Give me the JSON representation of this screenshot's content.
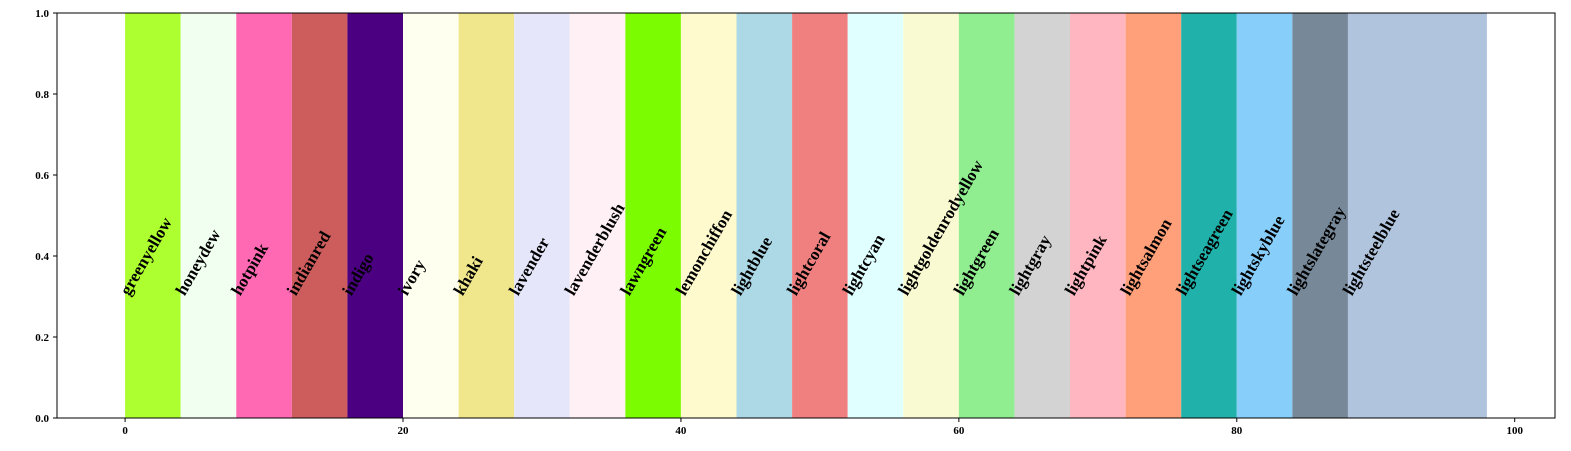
{
  "chart_data": {
    "type": "span",
    "categories": [
      "greenyellow",
      "honeydew",
      "hotpink",
      "indianred",
      "indigo",
      "ivory",
      "khaki",
      "lavender",
      "lavenderblush",
      "lawngreen",
      "lemonchiffon",
      "lightblue",
      "lightcoral",
      "lightcyan",
      "lightgoldenrodyellow",
      "lightgreen",
      "lightgray",
      "lightpink",
      "lightsalmon",
      "lightseagreen",
      "lightskyblue",
      "lightslategray",
      "lightsteelblue"
    ],
    "x": [
      0,
      4,
      8,
      12,
      16,
      20,
      24,
      28,
      32,
      36,
      40,
      44,
      48,
      52,
      56,
      60,
      64,
      68,
      72,
      76,
      80,
      84,
      88
    ],
    "x_end": [
      4,
      8,
      12,
      16,
      20,
      24,
      28,
      32,
      36,
      40,
      44,
      48,
      52,
      56,
      60,
      64,
      68,
      72,
      76,
      80,
      84,
      88,
      98
    ],
    "xlim": [
      -4.9,
      102.9
    ],
    "xticks": [
      0,
      20,
      40,
      60,
      80,
      100
    ],
    "ylim": [
      0,
      1
    ],
    "yticks": [
      {
        "value": 0,
        "label": "0.0"
      },
      0.2,
      0.4,
      0.6,
      0.8,
      {
        "value": 1,
        "label": "1.0"
      }
    ]
  }
}
